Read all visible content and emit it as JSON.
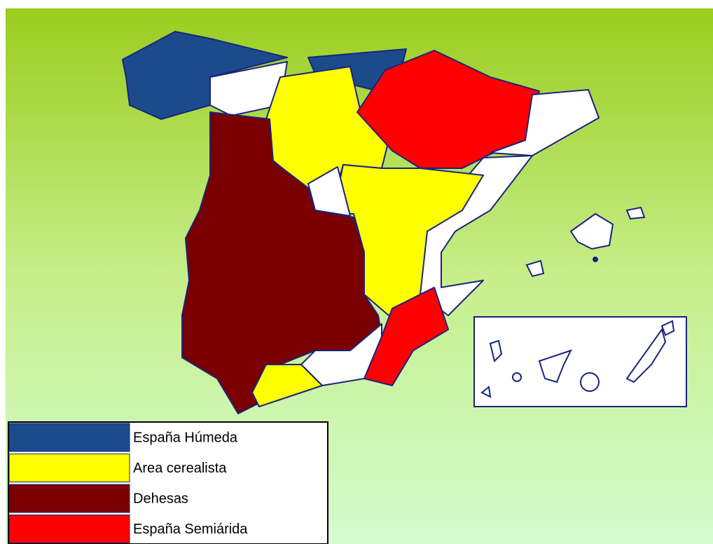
{
  "legend": {
    "items": [
      {
        "label": "España Húmeda",
        "color": "#1c4b8c"
      },
      {
        "label": "Area cerealista",
        "color": "#ffff00"
      },
      {
        "label": "Dehesas",
        "color": "#7a0000"
      },
      {
        "label": "España Semiárida",
        "color": "#ff0000"
      }
    ]
  }
}
